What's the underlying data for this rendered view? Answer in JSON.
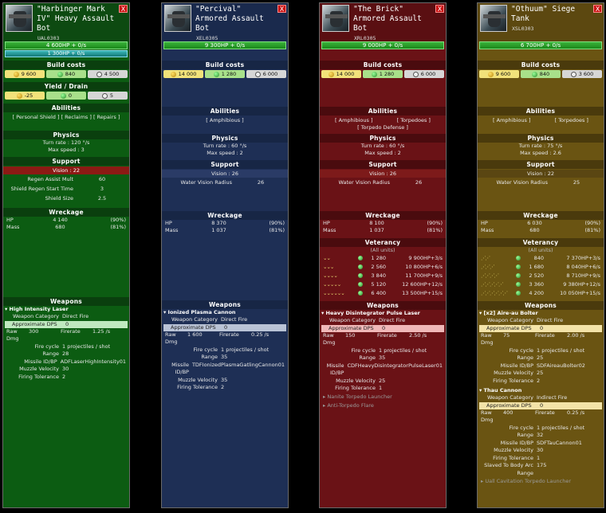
{
  "labels": {
    "build_costs": "Build costs",
    "yield_drain": "Yield / Drain",
    "abilities": "Abilities",
    "physics": "Physics",
    "support": "Support",
    "wreckage": "Wreckage",
    "veterancy": "Veterancy",
    "all_units": "(All units)",
    "weapons": "Weapons",
    "close": "X",
    "turn_rate": "Turn rate",
    "max_speed": "Max speed",
    "hp": "HP",
    "mass": "Mass",
    "weapon_category": "Weapon Category",
    "approx_dps": "Approximate DPS",
    "raw_dmg": "Raw Dmg",
    "firerate": "Firerate",
    "fire_cycle": "Fire cycle",
    "range": "Range",
    "missile_id": "Missile ID/BP",
    "muzzle_velocity": "Muzzle Velocity",
    "firing_tolerance": "Firing Tolerance",
    "slaved_arc": "Slaved To Body Arc",
    "slaved_range": "Range"
  },
  "units": [
    {
      "title": "\"Harbinger Mark IV\" Heavy Assault Bot",
      "code": "UAL0303",
      "hp": "4 600HP + 0/s",
      "shield": "1 300HP + 0/s",
      "costs": {
        "mass": "9 600",
        "energy": "840",
        "time": "4 500"
      },
      "yield": {
        "mass": "-25",
        "energy": "0",
        "time": "5"
      },
      "abilities": [
        "[ Personal Shield ] [ Reclaims ] [ Repairs ]"
      ],
      "turn_rate": ": 120 °/s",
      "max_speed": ": 3",
      "vision": "Vision : 22",
      "support": [
        {
          "k": "Regen Assist Mult",
          "v": "60"
        },
        {
          "k": "Shield Regen Start Time",
          "v": "3"
        },
        {
          "k": "Shield Size",
          "v": "2.5"
        }
      ],
      "wreck_hp": [
        "4 140",
        "(90%)"
      ],
      "wreck_mass": [
        "680",
        "(81%)"
      ],
      "weapons": [
        {
          "name": "High Intensity Laser",
          "category": "Direct Fire",
          "dps": "0",
          "raw_dmg": "300",
          "firerate": "1.25 /s",
          "fire_cycle": "1 projectiles / shot",
          "range": "28",
          "missile": "ADFLaserHighIntensity01",
          "muzzle": "30",
          "tolerance": "2"
        }
      ]
    },
    {
      "title": "\"Percival\" Armored Assault Bot",
      "code": "XEL0305",
      "hp": "9 300HP + 0/s",
      "costs": {
        "mass": "14 000",
        "energy": "1 280",
        "time": "6 000"
      },
      "abilities": [
        "[ Amphibious ]"
      ],
      "turn_rate": ": 60 °/s",
      "max_speed": ": 2",
      "vision": "Vision : 26",
      "support": [
        {
          "k": "Water Vision Radius",
          "v": "26"
        }
      ],
      "wreck_hp": [
        "8 370",
        "(90%)"
      ],
      "wreck_mass": [
        "1 037",
        "(81%)"
      ],
      "weapons": [
        {
          "name": "Ionized Plasma Cannon",
          "category": "Direct Fire",
          "dps": "0",
          "raw_dmg": "1 600",
          "firerate": "0.25 /s",
          "fire_cycle": "1 projectiles / shot",
          "range": "35",
          "missile": "TDFIonizedPlasmaGatlingCannon01",
          "muzzle": "35",
          "tolerance": "2"
        }
      ]
    },
    {
      "title": "\"The Brick\" Armored Assault Bot",
      "code": "XRL0305",
      "hp": "9 000HP + 0/s",
      "costs": {
        "mass": "14 000",
        "energy": "1 280",
        "time": "6 000"
      },
      "abilities": [
        "[ Amphibious ]",
        "[ Torpedoes ]",
        "[ Torpedo Defense ]"
      ],
      "turn_rate": ": 60 °/s",
      "max_speed": ": 2",
      "vision": "Vision : 26",
      "support": [
        {
          "k": "Water Vision Radius",
          "v": "26"
        }
      ],
      "wreck_hp": [
        "8 100",
        "(90%)"
      ],
      "wreck_mass": [
        "1 037",
        "(81%)"
      ],
      "veterancy": [
        {
          "chev": "⌄⌄",
          "a": "1 280",
          "b": "9 900HP+3/s"
        },
        {
          "chev": "⌄⌄⌄",
          "a": "2 560",
          "b": "10 800HP+6/s"
        },
        {
          "chev": "⌄⌄⌄⌄",
          "a": "3 840",
          "b": "11 700HP+9/s"
        },
        {
          "chev": "⌄⌄⌄⌄⌄",
          "a": "5 120",
          "b": "12 600HP+12/s"
        },
        {
          "chev": "⌄⌄⌄⌄⌄⌄",
          "a": "6 400",
          "b": "13 500HP+15/s"
        }
      ],
      "weapons": [
        {
          "name": "Heavy Disintegrator Pulse Laser",
          "category": "Direct Fire",
          "dps": "0",
          "raw_dmg": "150",
          "firerate": "2.50 /s",
          "fire_cycle": "1 projectiles / shot",
          "range": "35",
          "missile": "CDFHeavyDisintegratorPulseLaser01",
          "muzzle": "25",
          "tolerance": "1"
        }
      ],
      "extra": [
        "Nanite Torpedo Launcher",
        "Anti-Torpedo Flare"
      ]
    },
    {
      "title": "\"Othuum\" Siege Tank",
      "code": "XSL0303",
      "hp": "6 700HP + 0/s",
      "costs": {
        "mass": "9 600",
        "energy": "840",
        "time": "3 600"
      },
      "abilities": [
        "[ Amphibious ]",
        "[ Torpedoes ]"
      ],
      "turn_rate": ": 75 °/s",
      "max_speed": ": 2.6",
      "vision": "Vision : 22",
      "support": [
        {
          "k": "Water Vision Radius",
          "v": "25"
        }
      ],
      "wreck_hp": [
        "6 030",
        "(90%)"
      ],
      "wreck_mass": [
        "680",
        "(81%)"
      ],
      "veterancy": [
        {
          "chev": "⋰⋰",
          "a": "840",
          "b": "7 370HP+3/s"
        },
        {
          "chev": "⋰⋰⋰",
          "a": "1 680",
          "b": "8 040HP+6/s"
        },
        {
          "chev": "⋰⋰⋰⋰",
          "a": "2 520",
          "b": "8 710HP+9/s"
        },
        {
          "chev": "⋰⋰⋰⋰⋰",
          "a": "3 360",
          "b": "9 380HP+12/s"
        },
        {
          "chev": "⋰⋰⋰⋰⋰⋰",
          "a": "4 200",
          "b": "10 050HP+15/s"
        }
      ],
      "weapons": [
        {
          "name": "[x2] Aire-au Bolter",
          "category": "Direct Fire",
          "dps": "0",
          "raw_dmg": "75",
          "firerate": "2.00 /s",
          "fire_cycle": "1 projectiles / shot",
          "range": "25",
          "missile": "SDFAireauBolter02",
          "muzzle": "25",
          "tolerance": "2"
        },
        {
          "name": "Thau Cannon",
          "category": "Indirect Fire",
          "dps": "0",
          "raw_dmg": "400",
          "firerate": "0.25 /s",
          "fire_cycle": "1 projectiles / shot",
          "range": "32",
          "missile": "SDFTauCannon01",
          "muzzle": "30",
          "tolerance": "1",
          "slaved": "175"
        }
      ],
      "extra": [
        "Uall Cavitation Torpedo Launcher"
      ]
    }
  ]
}
